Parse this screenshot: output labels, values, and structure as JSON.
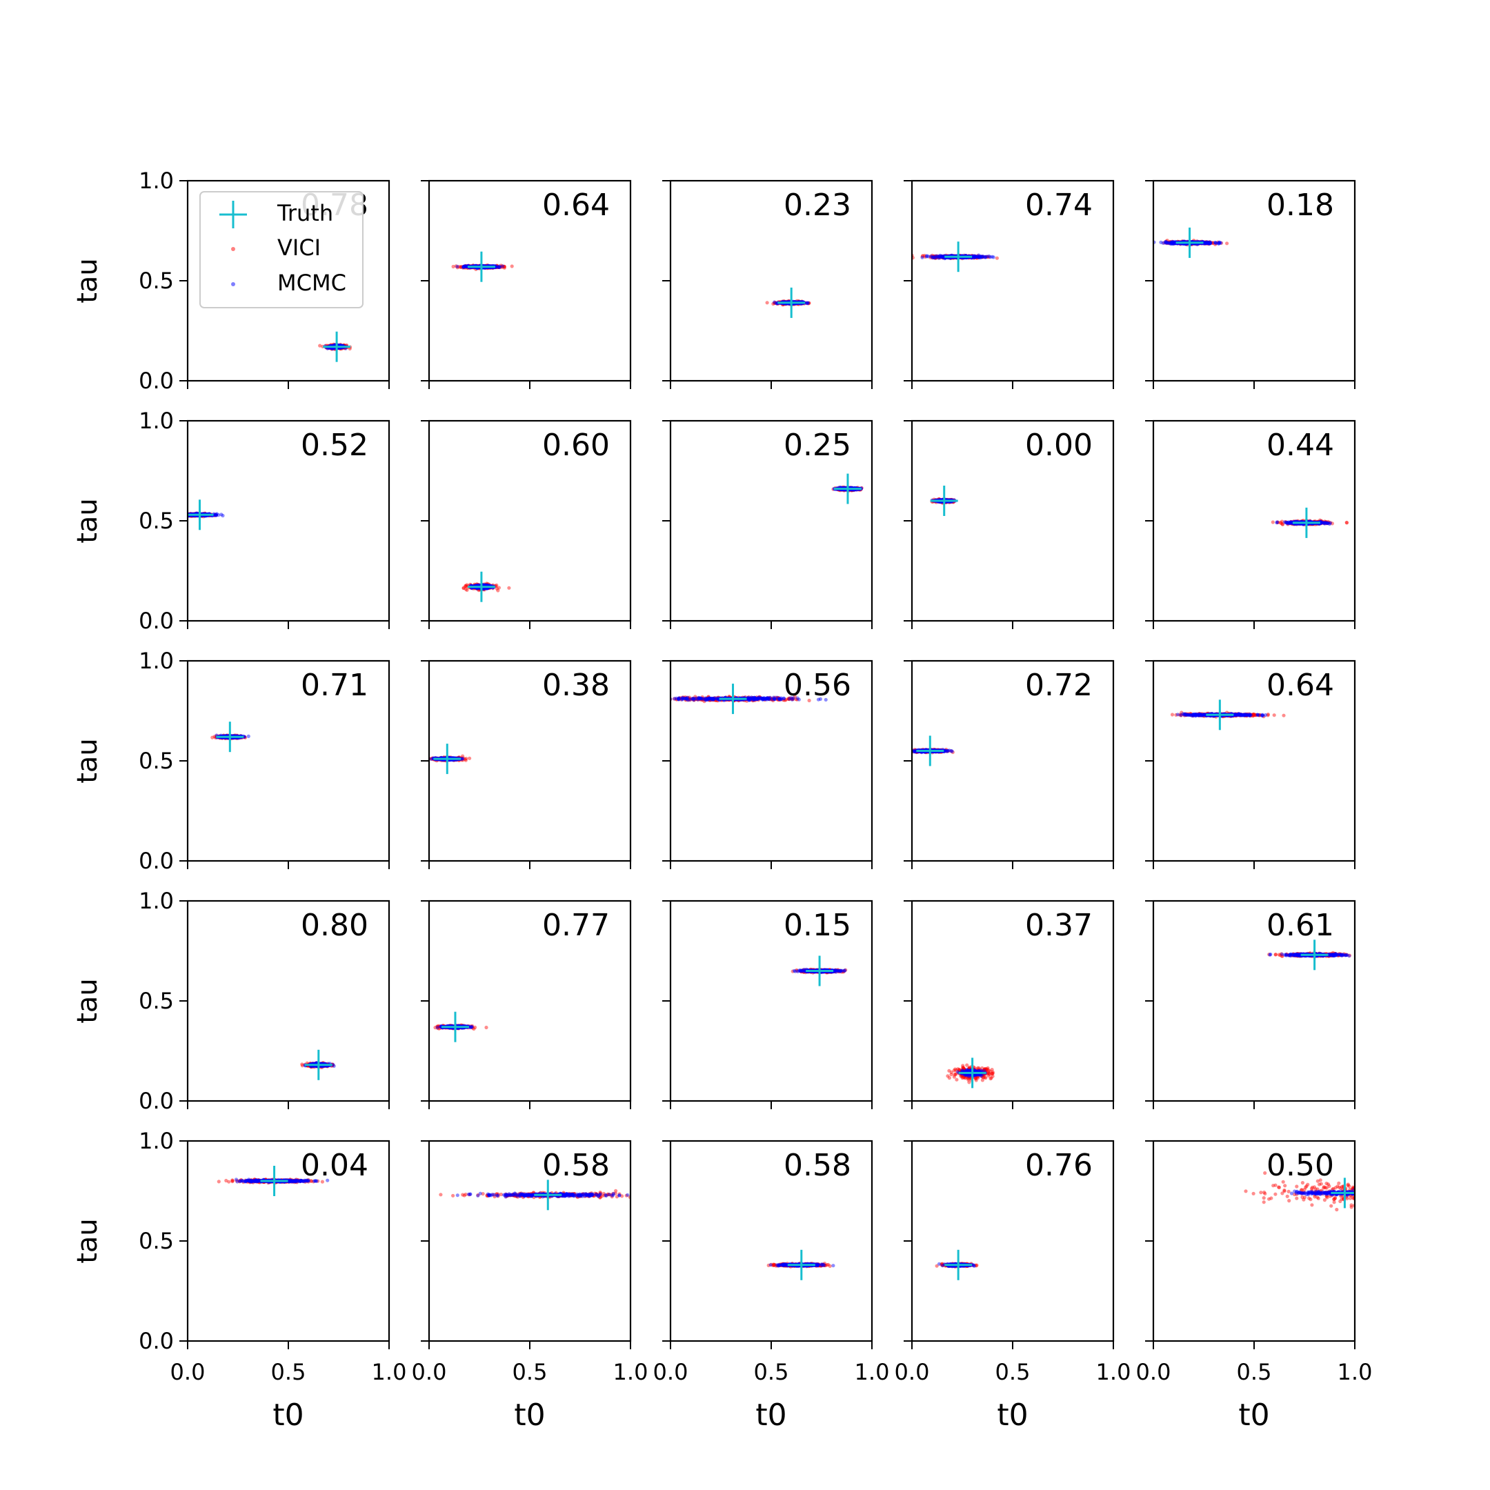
{
  "chart_data": {
    "type": "scatter",
    "layout": "5x5 grid of subplots, shared axes",
    "xlabel": "t0",
    "ylabel": "tau",
    "xlim": [
      0.0,
      1.0
    ],
    "ylim": [
      0.0,
      1.0
    ],
    "xticks": [
      "0.0",
      "0.5",
      "1.0"
    ],
    "yticks": [
      "0.0",
      "0.5",
      "1.0"
    ],
    "grid": false,
    "legend": {
      "placement": "upper-left of first panel",
      "entries": [
        {
          "name": "Truth",
          "marker": "+",
          "color": "#17becf"
        },
        {
          "name": "VICI",
          "marker": "dot",
          "color": "#ff0000"
        },
        {
          "name": "MCMC",
          "marker": "dot",
          "color": "#0000ff"
        }
      ]
    },
    "panels": [
      {
        "label": "0.78",
        "truth": {
          "t0": 0.74,
          "tau": 0.17
        },
        "vici": {
          "x_spread": 0.06,
          "y_spread": 0.012
        },
        "mcmc": {
          "x_spread": 0.05,
          "y_spread": 0.008
        }
      },
      {
        "label": "0.64",
        "truth": {
          "t0": 0.26,
          "tau": 0.57
        },
        "vici": {
          "x_spread": 0.12,
          "y_spread": 0.008
        },
        "mcmc": {
          "x_spread": 0.1,
          "y_spread": 0.006
        }
      },
      {
        "label": "0.23",
        "truth": {
          "t0": 0.6,
          "tau": 0.39
        },
        "vici": {
          "x_spread": 0.08,
          "y_spread": 0.008
        },
        "mcmc": {
          "x_spread": 0.07,
          "y_spread": 0.006
        }
      },
      {
        "label": "0.74",
        "truth": {
          "t0": 0.23,
          "tau": 0.62
        },
        "vici": {
          "x_spread": 0.17,
          "y_spread": 0.008
        },
        "mcmc": {
          "x_spread": 0.16,
          "y_spread": 0.007
        }
      },
      {
        "label": "0.18",
        "truth": {
          "t0": 0.18,
          "tau": 0.69
        },
        "vici": {
          "x_spread": 0.14,
          "y_spread": 0.008
        },
        "mcmc": {
          "x_spread": 0.15,
          "y_spread": 0.007
        }
      },
      {
        "label": "0.52",
        "truth": {
          "t0": 0.06,
          "tau": 0.53
        },
        "vici": {
          "x_spread": 0.08,
          "y_spread": 0.007
        },
        "mcmc": {
          "x_spread": 0.09,
          "y_spread": 0.006
        }
      },
      {
        "label": "0.60",
        "truth": {
          "t0": 0.26,
          "tau": 0.17
        },
        "vici": {
          "x_spread": 0.08,
          "y_spread": 0.015
        },
        "mcmc": {
          "x_spread": 0.06,
          "y_spread": 0.01
        }
      },
      {
        "label": "0.25",
        "truth": {
          "t0": 0.88,
          "tau": 0.66
        },
        "vici": {
          "x_spread": 0.07,
          "y_spread": 0.008
        },
        "mcmc": {
          "x_spread": 0.07,
          "y_spread": 0.006
        }
      },
      {
        "label": "0.00",
        "truth": {
          "t0": 0.16,
          "tau": 0.6
        },
        "vici": {
          "x_spread": 0.06,
          "y_spread": 0.008
        },
        "mcmc": {
          "x_spread": 0.05,
          "y_spread": 0.006
        }
      },
      {
        "label": "0.44",
        "truth": {
          "t0": 0.76,
          "tau": 0.49
        },
        "vici": {
          "x_spread": 0.14,
          "y_spread": 0.01
        },
        "mcmc": {
          "x_spread": 0.12,
          "y_spread": 0.007
        }
      },
      {
        "label": "0.71",
        "truth": {
          "t0": 0.21,
          "tau": 0.62
        },
        "vici": {
          "x_spread": 0.07,
          "y_spread": 0.008
        },
        "mcmc": {
          "x_spread": 0.07,
          "y_spread": 0.006
        }
      },
      {
        "label": "0.38",
        "truth": {
          "t0": 0.09,
          "tau": 0.51
        },
        "vici": {
          "x_spread": 0.1,
          "y_spread": 0.008
        },
        "mcmc": {
          "x_spread": 0.07,
          "y_spread": 0.006
        }
      },
      {
        "label": "0.56",
        "truth": {
          "t0": 0.31,
          "tau": 0.81
        },
        "vici": {
          "x_spread": 0.4,
          "y_spread": 0.012
        },
        "mcmc": {
          "x_spread": 0.38,
          "y_spread": 0.008
        }
      },
      {
        "label": "0.72",
        "truth": {
          "t0": 0.09,
          "tau": 0.55
        },
        "vici": {
          "x_spread": 0.1,
          "y_spread": 0.008
        },
        "mcmc": {
          "x_spread": 0.1,
          "y_spread": 0.006
        }
      },
      {
        "label": "0.64",
        "truth": {
          "t0": 0.33,
          "tau": 0.73
        },
        "vici": {
          "x_spread": 0.24,
          "y_spread": 0.008
        },
        "mcmc": {
          "x_spread": 0.22,
          "y_spread": 0.006
        }
      },
      {
        "label": "0.80",
        "truth": {
          "t0": 0.65,
          "tau": 0.18
        },
        "vici": {
          "x_spread": 0.07,
          "y_spread": 0.01
        },
        "mcmc": {
          "x_spread": 0.06,
          "y_spread": 0.008
        }
      },
      {
        "label": "0.77",
        "truth": {
          "t0": 0.13,
          "tau": 0.37
        },
        "vici": {
          "x_spread": 0.09,
          "y_spread": 0.008
        },
        "mcmc": {
          "x_spread": 0.08,
          "y_spread": 0.006
        }
      },
      {
        "label": "0.15",
        "truth": {
          "t0": 0.74,
          "tau": 0.65
        },
        "vici": {
          "x_spread": 0.13,
          "y_spread": 0.008
        },
        "mcmc": {
          "x_spread": 0.13,
          "y_spread": 0.006
        }
      },
      {
        "label": "0.37",
        "truth": {
          "t0": 0.3,
          "tau": 0.14
        },
        "vici": {
          "x_spread": 0.12,
          "y_spread": 0.035
        },
        "mcmc": {
          "x_spread": 0.06,
          "y_spread": 0.015
        }
      },
      {
        "label": "0.61",
        "truth": {
          "t0": 0.8,
          "tau": 0.73
        },
        "vici": {
          "x_spread": 0.19,
          "y_spread": 0.008
        },
        "mcmc": {
          "x_spread": 0.18,
          "y_spread": 0.006
        }
      },
      {
        "label": "0.04",
        "truth": {
          "t0": 0.43,
          "tau": 0.8
        },
        "vici": {
          "x_spread": 0.22,
          "y_spread": 0.008
        },
        "mcmc": {
          "x_spread": 0.2,
          "y_spread": 0.006
        }
      },
      {
        "label": "0.58",
        "truth": {
          "t0": 0.59,
          "tau": 0.73
        },
        "vici": {
          "x_spread": 0.44,
          "y_spread": 0.012
        },
        "mcmc": {
          "x_spread": 0.4,
          "y_spread": 0.008
        }
      },
      {
        "label": "0.58",
        "truth": {
          "t0": 0.65,
          "tau": 0.38
        },
        "vici": {
          "x_spread": 0.15,
          "y_spread": 0.008
        },
        "mcmc": {
          "x_spread": 0.13,
          "y_spread": 0.006
        }
      },
      {
        "label": "0.76",
        "truth": {
          "t0": 0.23,
          "tau": 0.38
        },
        "vici": {
          "x_spread": 0.08,
          "y_spread": 0.008
        },
        "mcmc": {
          "x_spread": 0.07,
          "y_spread": 0.006
        }
      },
      {
        "label": "0.50",
        "truth": {
          "t0": 0.95,
          "tau": 0.74
        },
        "vici": {
          "x_spread": 0.5,
          "y_spread": 0.07
        },
        "mcmc": {
          "x_spread": 0.3,
          "y_spread": 0.01
        }
      }
    ]
  },
  "colors": {
    "truth": "#17becf",
    "vici": "#ff0000",
    "mcmc": "#0000ff",
    "axes": "#000000"
  }
}
